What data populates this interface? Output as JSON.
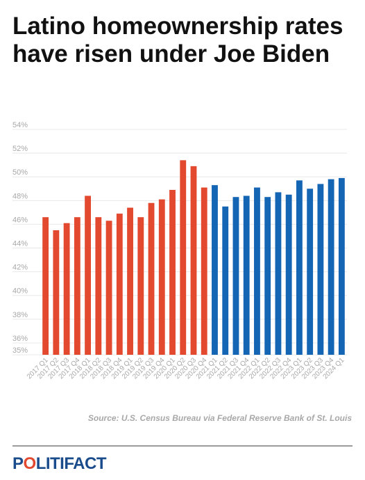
{
  "title": "Latino homeownership rates have risen under Joe Biden",
  "source": "Source: U.S. Census Bureau via Federal Reserve Bank of St. Louis",
  "logo": {
    "text_pre": "P",
    "text_accent": "O",
    "text_post": "LITIFACT"
  },
  "colors": {
    "trump_bars": "#e2492f",
    "biden_bars": "#1565b5",
    "grid": "#e8e8e8",
    "tick_text": "#a8a8a8"
  },
  "chart_data": {
    "type": "bar",
    "title": "Latino homeownership rates have risen under Joe Biden",
    "xlabel": "",
    "ylabel": "",
    "ylim": [
      35,
      54
    ],
    "yticks": [
      "35%",
      "36%",
      "38%",
      "40%",
      "42%",
      "44%",
      "46%",
      "48%",
      "50%",
      "52%",
      "54%"
    ],
    "ytick_values": [
      35,
      36,
      38,
      40,
      42,
      44,
      46,
      48,
      50,
      52,
      54
    ],
    "grid": true,
    "categories": [
      "2017 Q1",
      "2017 Q2",
      "2017 Q3",
      "2017 Q4",
      "2018 Q1",
      "2018 Q2",
      "2018 Q3",
      "2018 Q4",
      "2019 Q1",
      "2019 Q2",
      "2019 Q3",
      "2019 Q4",
      "2020 Q1",
      "2020 Q2",
      "2020 Q3",
      "2020 Q4",
      "2021 Q1",
      "2021 Q2",
      "2021 Q3",
      "2021 Q4",
      "2022 Q1",
      "2022 Q2",
      "2022 Q3",
      "2022 Q4",
      "2023 Q1",
      "2023 Q2",
      "2023 Q3",
      "2023 Q4",
      "2024 Q1"
    ],
    "values": [
      46.6,
      45.5,
      46.1,
      46.6,
      48.4,
      46.6,
      46.3,
      46.9,
      47.4,
      46.6,
      47.8,
      48.1,
      48.9,
      51.4,
      50.9,
      49.1,
      49.3,
      47.5,
      48.3,
      48.4,
      49.1,
      48.3,
      48.7,
      48.5,
      49.7,
      49.0,
      49.4,
      49.8,
      49.9
    ],
    "bar_colors": [
      "#e2492f",
      "#e2492f",
      "#e2492f",
      "#e2492f",
      "#e2492f",
      "#e2492f",
      "#e2492f",
      "#e2492f",
      "#e2492f",
      "#e2492f",
      "#e2492f",
      "#e2492f",
      "#e2492f",
      "#e2492f",
      "#e2492f",
      "#e2492f",
      "#1565b5",
      "#1565b5",
      "#1565b5",
      "#1565b5",
      "#1565b5",
      "#1565b5",
      "#1565b5",
      "#1565b5",
      "#1565b5",
      "#1565b5",
      "#1565b5",
      "#1565b5",
      "#1565b5"
    ]
  }
}
